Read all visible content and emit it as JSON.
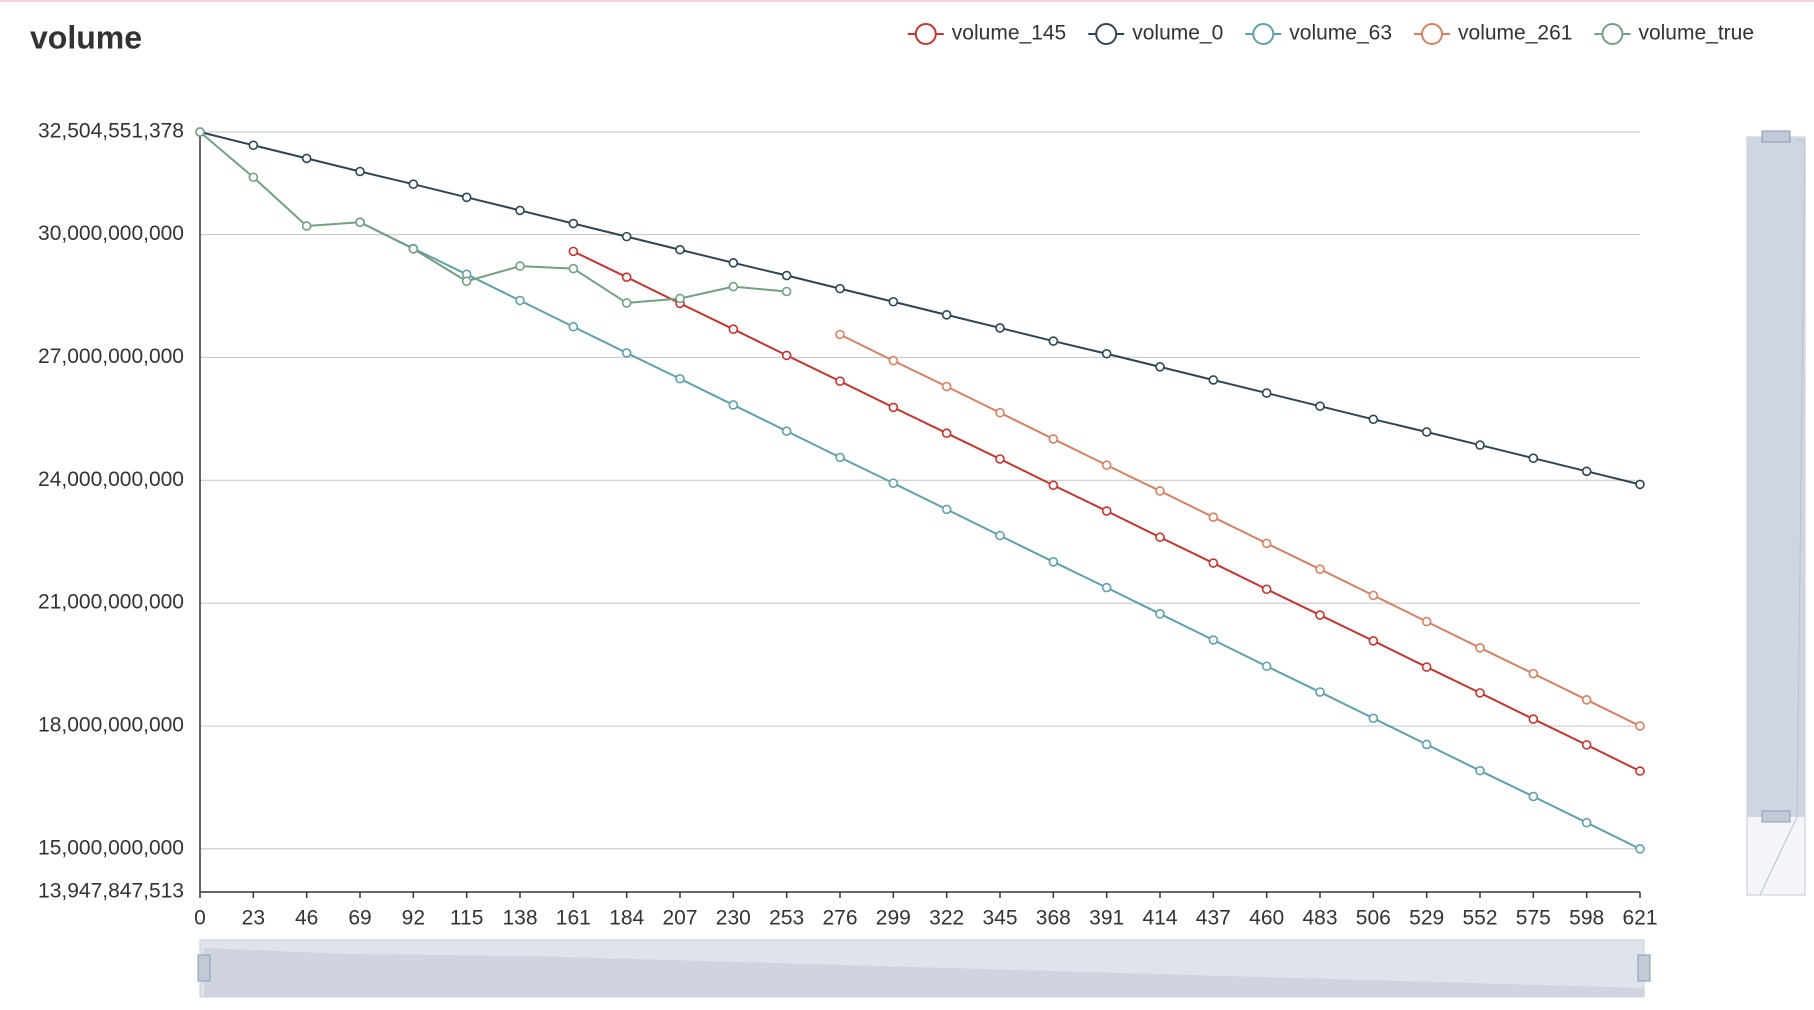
{
  "chart_data": {
    "type": "line",
    "title": "volume",
    "x": [
      0,
      23,
      46,
      69,
      92,
      115,
      138,
      161,
      184,
      207,
      230,
      253,
      276,
      299,
      322,
      345,
      368,
      391,
      414,
      437,
      460,
      483,
      506,
      529,
      552,
      575,
      598,
      621
    ],
    "xlim": [
      0,
      621
    ],
    "xticks": [
      0,
      23,
      46,
      69,
      92,
      115,
      138,
      161,
      184,
      207,
      230,
      253,
      276,
      299,
      322,
      345,
      368,
      391,
      414,
      437,
      460,
      483,
      506,
      529,
      552,
      575,
      598,
      621
    ],
    "ylim": [
      13947847513,
      32504551378
    ],
    "yticks": [
      {
        "value": 13947847513,
        "label": "13,947,847,513"
      },
      {
        "value": 15000000000,
        "label": "15,000,000,000"
      },
      {
        "value": 18000000000,
        "label": "18,000,000,000"
      },
      {
        "value": 21000000000,
        "label": "21,000,000,000"
      },
      {
        "value": 24000000000,
        "label": "24,000,000,000"
      },
      {
        "value": 27000000000,
        "label": "27,000,000,000"
      },
      {
        "value": 30000000000,
        "label": "30,000,000,000"
      },
      {
        "value": 32504551378,
        "label": "32,504,551,378"
      }
    ],
    "grid": true,
    "legend": "top-right",
    "series": [
      {
        "name": "volume_145",
        "color": "#c23531",
        "values": [
          null,
          null,
          null,
          null,
          null,
          null,
          null,
          29590000000,
          28960000000,
          28320000000,
          27690000000,
          27050000000,
          26420000000,
          25780000000,
          25150000000,
          24520000000,
          23880000000,
          23250000000,
          22610000000,
          21980000000,
          21340000000,
          20710000000,
          20080000000,
          19440000000,
          18810000000,
          18170000000,
          17540000000,
          16900000000
        ]
      },
      {
        "name": "volume_0",
        "color": "#2f4554",
        "values": [
          32504551378,
          32180000000,
          31860000000,
          31540000000,
          31230000000,
          30910000000,
          30590000000,
          30270000000,
          29950000000,
          29630000000,
          29310000000,
          29000000000,
          28680000000,
          28360000000,
          28040000000,
          27720000000,
          27400000000,
          27090000000,
          26770000000,
          26450000000,
          26130000000,
          25810000000,
          25490000000,
          25180000000,
          24860000000,
          24540000000,
          24220000000,
          23900000000
        ]
      },
      {
        "name": "volume_63",
        "color": "#61a0a8",
        "values": [
          null,
          null,
          null,
          30300000000,
          29660000000,
          29030000000,
          28390000000,
          27750000000,
          27110000000,
          26480000000,
          25840000000,
          25200000000,
          24560000000,
          23930000000,
          23290000000,
          22650000000,
          22010000000,
          21380000000,
          20740000000,
          20100000000,
          19460000000,
          18830000000,
          18190000000,
          17550000000,
          16910000000,
          16280000000,
          15640000000,
          15000000000
        ]
      },
      {
        "name": "volume_261",
        "color": "#d48265",
        "values": [
          null,
          null,
          null,
          null,
          null,
          null,
          null,
          null,
          null,
          null,
          null,
          null,
          27560000000,
          26920000000,
          26290000000,
          25650000000,
          25010000000,
          24370000000,
          23740000000,
          23100000000,
          22460000000,
          21830000000,
          21190000000,
          20550000000,
          19910000000,
          19280000000,
          18640000000,
          18000000000
        ]
      },
      {
        "name": "volume_true",
        "color": "#749f83",
        "values": [
          32504551378,
          31400000000,
          30210000000,
          30300000000,
          29650000000,
          28860000000,
          29230000000,
          29170000000,
          28330000000,
          28440000000,
          28730000000,
          28610000000,
          null,
          null,
          null,
          null,
          null,
          null,
          null,
          null,
          null,
          null,
          null,
          null,
          null,
          null,
          null,
          null
        ]
      }
    ]
  }
}
